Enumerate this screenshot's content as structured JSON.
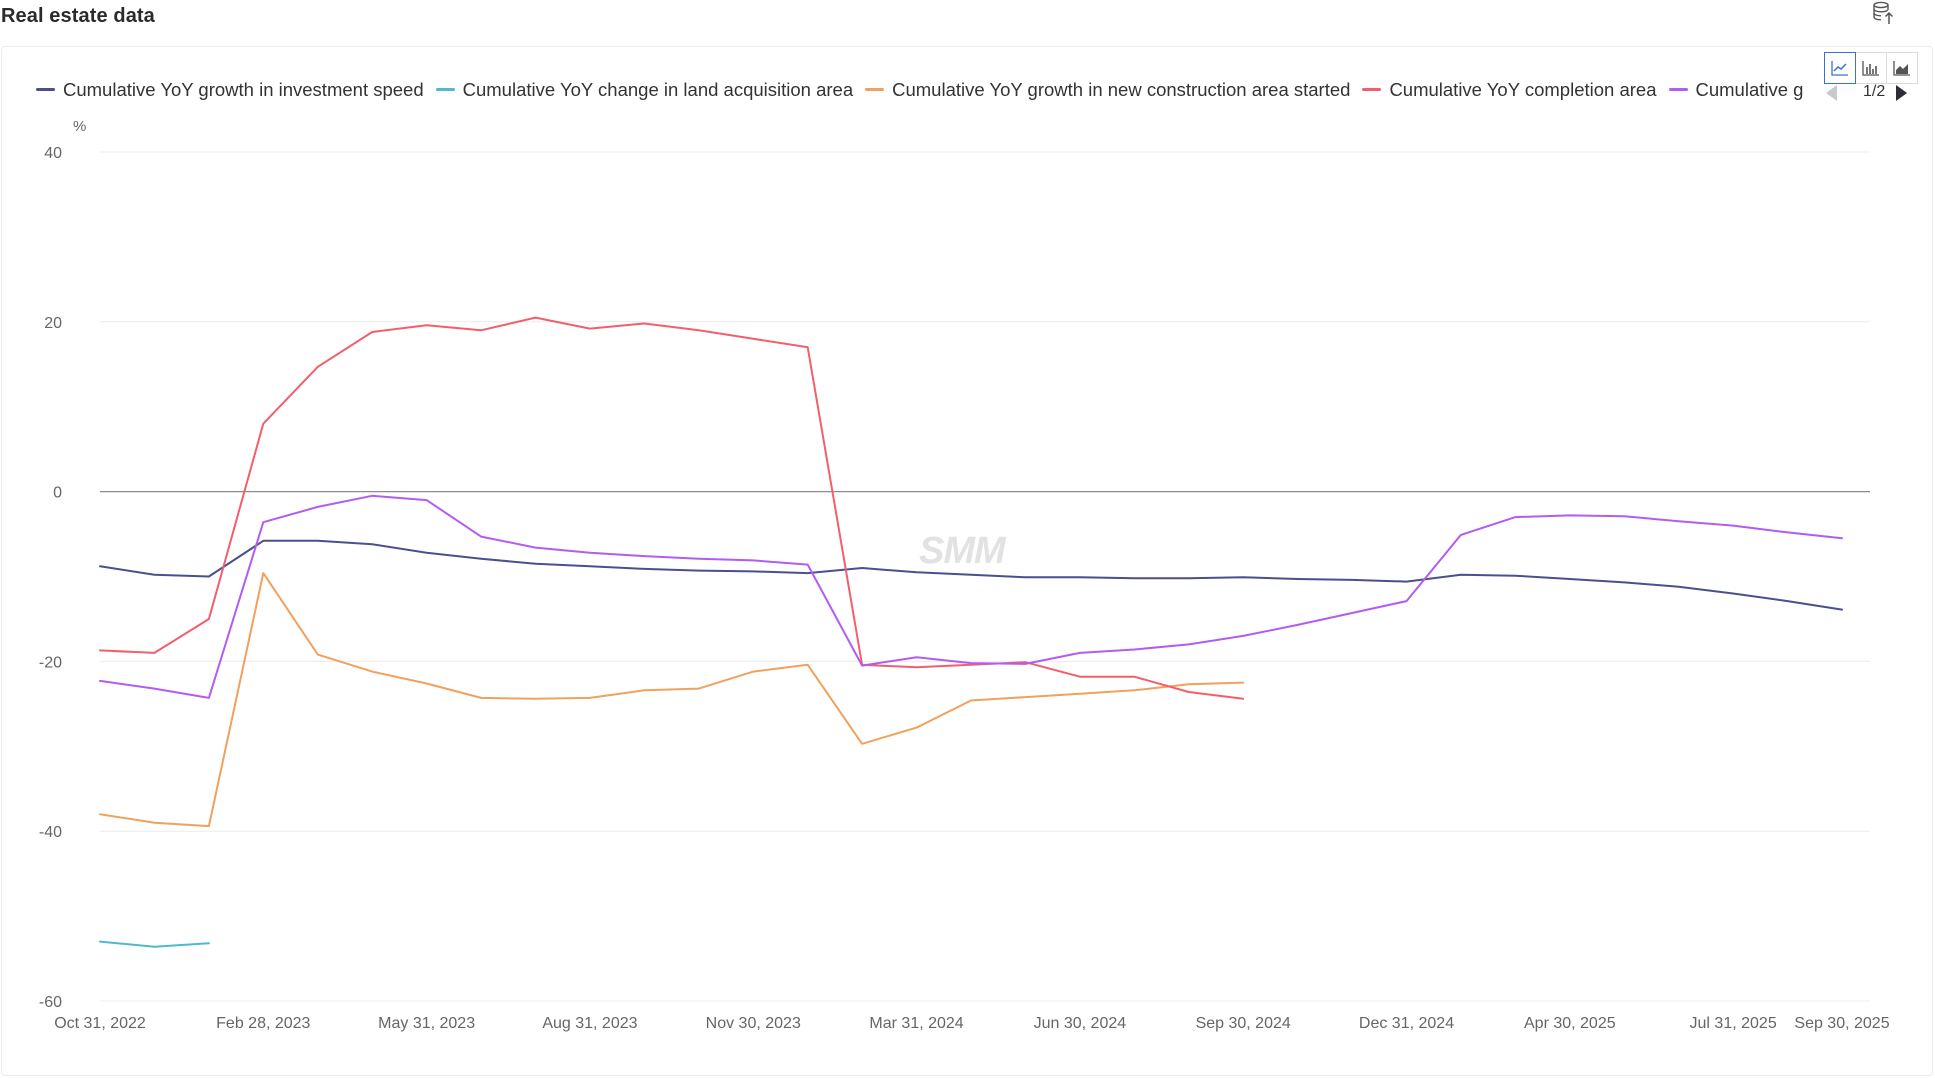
{
  "page": {
    "title": "Real estate data"
  },
  "toolbar": {
    "export_icon": "database-export-icon"
  },
  "chart_tools": [
    {
      "name": "line-chart-icon",
      "active": true
    },
    {
      "name": "bar-chart-icon",
      "active": false
    },
    {
      "name": "area-chart-icon",
      "active": false
    }
  ],
  "legend": {
    "items": [
      {
        "label": "Cumulative YoY growth in investment speed",
        "color": "#4b4f8f"
      },
      {
        "label": "Cumulative YoY change in land acquisition area",
        "color": "#4fb9cd"
      },
      {
        "label": "Cumulative YoY growth in new construction area started",
        "color": "#f0a15c"
      },
      {
        "label": "Cumulative YoY completion area",
        "color": "#f25f6c"
      },
      {
        "label": "Cumulative g",
        "color": "#b25cf2"
      }
    ],
    "page_indicator": "1/2"
  },
  "watermark": "SMM",
  "chart_data": {
    "type": "line",
    "ylabel": "%",
    "ylim": [
      -60,
      40
    ],
    "yticks": [
      -60,
      -40,
      -20,
      0,
      20,
      40
    ],
    "grid": true,
    "legend_position": "top",
    "x": [
      "Oct 31, 2022",
      "Nov 30, 2022",
      "Dec 31, 2022",
      "Feb 28, 2023",
      "Mar 31, 2023",
      "Apr 30, 2023",
      "May 31, 2023",
      "Jun 30, 2023",
      "Jul 31, 2023",
      "Aug 31, 2023",
      "Sep 30, 2023",
      "Oct 31, 2023",
      "Nov 30, 2023",
      "Dec 31, 2023",
      "Feb 29, 2024",
      "Mar 31, 2024",
      "Apr 30, 2024",
      "May 31, 2024",
      "Jun 30, 2024",
      "Jul 31, 2024",
      "Aug 31, 2024",
      "Sep 30, 2024",
      "Oct 31, 2024",
      "Nov 30, 2024",
      "Dec 31, 2024",
      "Feb 28, 2025",
      "Mar 31, 2025",
      "Apr 30, 2025",
      "May 31, 2025",
      "Jun 30, 2025",
      "Jul 31, 2025",
      "Aug 31, 2025",
      "Sep 30, 2025"
    ],
    "xtick_labels": [
      "Oct 31, 2022",
      "Feb 28, 2023",
      "May 31, 2023",
      "Aug 31, 2023",
      "Nov 30, 2023",
      "Mar 31, 2024",
      "Jun 30, 2024",
      "Sep 30, 2024",
      "Dec 31, 2024",
      "Apr 30, 2025",
      "Jul 31, 2025",
      "Sep 30, 2025"
    ],
    "series": [
      {
        "name": "Cumulative YoY growth in investment speed",
        "color": "#4b4f8f",
        "values": [
          -8.8,
          -9.8,
          -10.0,
          -5.8,
          -5.8,
          -6.2,
          -7.2,
          -7.9,
          -8.5,
          -8.8,
          -9.1,
          -9.3,
          -9.4,
          -9.6,
          -9.0,
          -9.5,
          -9.8,
          -10.1,
          -10.1,
          -10.2,
          -10.2,
          -10.1,
          -10.3,
          -10.4,
          -10.6,
          -9.8,
          -9.9,
          -10.3,
          -10.7,
          -11.2,
          -12.0,
          -12.9,
          -13.9
        ]
      },
      {
        "name": "Cumulative YoY change in land acquisition area",
        "color": "#4fb9cd",
        "values": [
          -53.0,
          -53.6,
          -53.2,
          null,
          null,
          null,
          null,
          null,
          null,
          null,
          null,
          null,
          null,
          null,
          null,
          null,
          null,
          null,
          null,
          null,
          null,
          null,
          null,
          null,
          null,
          null,
          null,
          null,
          null,
          null,
          null,
          null,
          null
        ]
      },
      {
        "name": "Cumulative YoY growth in new construction area started",
        "color": "#f0a15c",
        "values": [
          -38.0,
          -39.0,
          -39.4,
          -9.6,
          -19.2,
          -21.2,
          -22.6,
          -24.3,
          -24.4,
          -24.3,
          -23.4,
          -23.2,
          -21.2,
          -20.4,
          -29.7,
          -27.8,
          -24.6,
          -24.2,
          -23.8,
          -23.4,
          -22.7,
          -22.5,
          null,
          null,
          null,
          null,
          null,
          null,
          null,
          null,
          null,
          null,
          null
        ]
      },
      {
        "name": "Cumulative YoY completion area",
        "color": "#f25f6c",
        "values": [
          -18.7,
          -19.0,
          -15.0,
          8.0,
          14.7,
          18.8,
          19.6,
          19.0,
          20.5,
          19.2,
          19.8,
          19.0,
          18.0,
          17.0,
          -20.4,
          -20.7,
          -20.4,
          -20.1,
          -21.8,
          -21.8,
          -23.6,
          -24.4,
          null,
          null,
          null,
          null,
          null,
          null,
          null,
          null,
          null,
          null,
          null
        ]
      },
      {
        "name": "Cumulative g",
        "color": "#b25cf2",
        "values": [
          -22.3,
          -23.2,
          -24.3,
          -3.6,
          -1.8,
          -0.5,
          -1.0,
          -5.3,
          -6.6,
          -7.2,
          -7.6,
          -7.9,
          -8.1,
          -8.6,
          -20.5,
          -19.5,
          -20.2,
          -20.3,
          -19.0,
          -18.6,
          -18.0,
          -17.0,
          -15.7,
          -14.3,
          -12.9,
          -5.1,
          -3.0,
          -2.8,
          -2.9,
          -3.5,
          -4.0,
          -4.8,
          -5.5
        ]
      }
    ]
  }
}
